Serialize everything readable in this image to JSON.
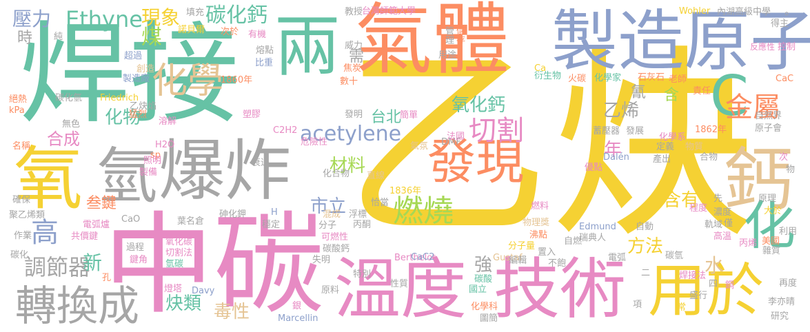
{
  "palette": {
    "yellow": "#f5d133",
    "pink": "#e78ac3",
    "green": "#66c2a5",
    "orange": "#fc8d62",
    "blue": "#8da0cb",
    "gray": "#a6a6a6",
    "lime": "#a6d854",
    "tan": "#e5c494"
  },
  "words": [
    {
      "text": "乙炔",
      "color": "yellow"
    },
    {
      "text": "焊接",
      "color": "green"
    },
    {
      "text": "中碳",
      "color": "pink"
    },
    {
      "text": "氣體",
      "color": "orange"
    },
    {
      "text": "製造原子",
      "color": "blue"
    },
    {
      "text": "溫度",
      "color": "pink"
    },
    {
      "text": "技術",
      "color": "pink"
    },
    {
      "text": "爆炸",
      "color": "gray"
    },
    {
      "text": "氧",
      "color": "yellow"
    },
    {
      "text": "氫",
      "color": "gray"
    },
    {
      "text": "兩",
      "color": "green"
    },
    {
      "text": "鈣",
      "color": "tan"
    },
    {
      "text": "用於",
      "color": "yellow"
    },
    {
      "text": "化",
      "color": "green"
    },
    {
      "text": "C",
      "color": "green"
    },
    {
      "text": "發現",
      "color": "orange"
    },
    {
      "text": "轉換成",
      "color": "gray"
    },
    {
      "text": "化學",
      "color": "tan"
    },
    {
      "text": "金屬",
      "color": "orange"
    },
    {
      "text": "燃燒",
      "color": "lime"
    },
    {
      "text": "切割",
      "color": "pink"
    },
    {
      "text": "Ethyne",
      "color": "green"
    },
    {
      "text": "acetylene",
      "color": "blue"
    },
    {
      "text": "高",
      "color": "blue"
    },
    {
      "text": "碳化鈣",
      "color": "green"
    },
    {
      "text": "壓力",
      "color": "blue"
    },
    {
      "text": "現象",
      "color": "yellow"
    },
    {
      "text": "氧化鈣",
      "color": "green"
    },
    {
      "text": "乙烯",
      "color": "gray"
    },
    {
      "text": "調節器",
      "color": "gray"
    },
    {
      "text": "化物",
      "color": "green"
    },
    {
      "text": "方法",
      "color": "yellow"
    },
    {
      "text": "含有",
      "color": "yellow"
    },
    {
      "text": "炔類",
      "color": "green"
    },
    {
      "text": "毒性",
      "color": "tan"
    },
    {
      "text": "材料",
      "color": "lime"
    },
    {
      "text": "市立",
      "color": "blue"
    },
    {
      "text": "強",
      "color": "gray"
    },
    {
      "text": "新",
      "color": "green"
    },
    {
      "text": "水",
      "color": "tan"
    },
    {
      "text": "年",
      "color": "pink"
    },
    {
      "text": "合成",
      "color": "pink"
    },
    {
      "text": "叁鍵",
      "color": "orange"
    },
    {
      "text": "煤",
      "color": "lime"
    },
    {
      "text": "時",
      "color": "gray"
    },
    {
      "text": "氰",
      "color": "gray"
    },
    {
      "text": "含",
      "color": "lime"
    },
    {
      "text": "需",
      "color": "gray"
    },
    {
      "text": "台北",
      "color": "green"
    },
    {
      "text": "台灣師範大學",
      "color": "pink"
    },
    {
      "text": "內湖高級中學",
      "color": "gray"
    },
    {
      "text": "Wohler",
      "color": "yellow"
    },
    {
      "text": "Friedrich",
      "color": "yellow"
    },
    {
      "text": "Berthelot",
      "color": "pink"
    },
    {
      "text": "Gustaf",
      "color": "tan"
    },
    {
      "text": "Marcellin",
      "color": "blue"
    },
    {
      "text": "Edmund",
      "color": "blue"
    },
    {
      "text": "Dalén",
      "color": "blue"
    },
    {
      "text": "Davy",
      "color": "blue"
    },
    {
      "text": "CaC2",
      "color": "blue"
    },
    {
      "text": "CaC",
      "color": "orange"
    },
    {
      "text": "C2H2",
      "color": "pink"
    },
    {
      "text": "H2O",
      "color": "pink"
    },
    {
      "text": "CaO",
      "color": "gray"
    },
    {
      "text": "DMF",
      "color": "gray"
    },
    {
      "text": "kPa",
      "color": "orange"
    },
    {
      "text": "sp",
      "color": "orange"
    },
    {
      "text": "H",
      "color": "blue"
    },
    {
      "text": "Ca",
      "color": "yellow"
    },
    {
      "text": "1860年",
      "color": "orange"
    },
    {
      "text": "1836年",
      "color": "yellow"
    },
    {
      "text": "1862年",
      "color": "orange"
    },
    {
      "text": "諾貝爾",
      "color": "yellow"
    },
    {
      "text": "次於",
      "color": "orange"
    },
    {
      "text": "有機",
      "color": "pink"
    },
    {
      "text": "教授",
      "color": "gray"
    },
    {
      "text": "管理",
      "color": "gray"
    },
    {
      "text": "儲存",
      "color": "orange"
    },
    {
      "text": "用途",
      "color": "gray"
    },
    {
      "text": "得主",
      "color": "gray"
    },
    {
      "text": "控制",
      "color": "pink"
    },
    {
      "text": "反應性",
      "color": "pink"
    },
    {
      "text": "熔點",
      "color": "gray"
    },
    {
      "text": "比重",
      "color": "blue"
    },
    {
      "text": "超過",
      "color": "blue"
    },
    {
      "text": "創造",
      "color": "tan"
    },
    {
      "text": "製造廠",
      "color": "blue"
    },
    {
      "text": "焦炭",
      "color": "orange"
    },
    {
      "text": "數十",
      "color": "orange"
    },
    {
      "text": "衍生物",
      "color": "green"
    },
    {
      "text": "火碳",
      "color": "orange"
    },
    {
      "text": "化學家",
      "color": "green"
    },
    {
      "text": "石灰石",
      "color": "orange"
    },
    {
      "text": "老師",
      "color": "orange"
    },
    {
      "text": "責任",
      "color": "orange"
    },
    {
      "text": "自然界",
      "color": "gray"
    },
    {
      "text": "原子會",
      "color": "gray"
    },
    {
      "text": "化學系",
      "color": "pink"
    },
    {
      "text": "蓄壓器",
      "color": "gray"
    },
    {
      "text": "發展",
      "color": "gray"
    },
    {
      "text": "定義",
      "color": "gray"
    },
    {
      "text": "物質",
      "color": "tan"
    },
    {
      "text": "產出",
      "color": "gray"
    },
    {
      "text": "合物",
      "color": "gray"
    },
    {
      "text": "優點",
      "color": "pink"
    },
    {
      "text": "發明",
      "color": "gray"
    },
    {
      "text": "簡單",
      "color": "pink"
    },
    {
      "text": "法國",
      "color": "pink"
    },
    {
      "text": "危險性",
      "color": "pink"
    },
    {
      "text": "氣氛",
      "color": "tan"
    },
    {
      "text": "化合物",
      "color": "gray"
    },
    {
      "text": "直線",
      "color": "tan"
    },
    {
      "text": "恰當",
      "color": "gray"
    },
    {
      "text": "浮標",
      "color": "gray"
    },
    {
      "text": "丙酮",
      "color": "gray"
    },
    {
      "text": "碳酸鈣",
      "color": "gray"
    },
    {
      "text": "混成",
      "color": "tan"
    },
    {
      "text": "分子",
      "color": "gray"
    },
    {
      "text": "可燃性",
      "color": "pink"
    },
    {
      "text": "失明",
      "color": "gray"
    },
    {
      "text": "特別",
      "color": "gray"
    },
    {
      "text": "性質",
      "color": "gray"
    },
    {
      "text": "原料",
      "color": "gray"
    },
    {
      "text": "國立",
      "color": "green"
    },
    {
      "text": "化學科",
      "color": "orange"
    },
    {
      "text": "圖簡",
      "color": "gray"
    },
    {
      "text": "碳酸",
      "color": "green"
    },
    {
      "text": "燃料",
      "color": "pink"
    },
    {
      "text": "物理獎",
      "color": "tan"
    },
    {
      "text": "瑞典人",
      "color": "gray"
    },
    {
      "text": "沸點",
      "color": "orange"
    },
    {
      "text": "分子量",
      "color": "yellow"
    },
    {
      "text": "編輯",
      "color": "gray"
    },
    {
      "text": "不飽",
      "color": "gray"
    },
    {
      "text": "自動",
      "color": "gray"
    },
    {
      "text": "置入",
      "color": "gray"
    },
    {
      "text": "自燃",
      "color": "gray"
    },
    {
      "text": "電弧",
      "color": "gray"
    },
    {
      "text": "高溫",
      "color": "pink"
    },
    {
      "text": "軌域",
      "color": "gray"
    },
    {
      "text": "濃度",
      "color": "gray"
    },
    {
      "text": "程度",
      "color": "pink"
    },
    {
      "text": "先",
      "color": "gray"
    },
    {
      "text": "原理",
      "color": "gray"
    },
    {
      "text": "大於",
      "color": "yellow"
    },
    {
      "text": "利用",
      "color": "gray"
    },
    {
      "text": "丙烯",
      "color": "pink"
    },
    {
      "text": "雜質",
      "color": "gray"
    },
    {
      "text": "美國",
      "color": "orange"
    },
    {
      "text": "碳氫",
      "color": "gray"
    },
    {
      "text": "焊接法",
      "color": "pink"
    },
    {
      "text": "四",
      "color": "gray"
    },
    {
      "text": "再度",
      "color": "gray"
    },
    {
      "text": "盛行",
      "color": "gray"
    },
    {
      "text": "李亦晴",
      "color": "gray"
    },
    {
      "text": "研究",
      "color": "gray"
    },
    {
      "text": "項",
      "color": "gray"
    },
    {
      "text": "常",
      "color": "yellow"
    },
    {
      "text": "鋼",
      "color": "pink"
    },
    {
      "text": "二",
      "color": "gray"
    },
    {
      "text": "僅",
      "color": "gray"
    },
    {
      "text": "次",
      "color": "pink"
    },
    {
      "text": "物",
      "color": "gray"
    },
    {
      "text": "電弧爐",
      "color": "pink"
    },
    {
      "text": "共價鍵",
      "color": "pink"
    },
    {
      "text": "鍵角",
      "color": "pink"
    },
    {
      "text": "過程",
      "color": "gray"
    },
    {
      "text": "氧化碳",
      "color": "pink"
    },
    {
      "text": "切割法",
      "color": "pink"
    },
    {
      "text": "氫碳",
      "color": "green"
    },
    {
      "text": "燈塔",
      "color": "pink"
    },
    {
      "text": "葉名倉",
      "color": "gray"
    },
    {
      "text": "砷化鉀",
      "color": "gray"
    },
    {
      "text": "照明",
      "color": "pink"
    },
    {
      "text": "製備",
      "color": "pink"
    },
    {
      "text": "穩定",
      "color": "gray"
    },
    {
      "text": "作業",
      "color": "gray"
    },
    {
      "text": "碳化",
      "color": "gray"
    },
    {
      "text": "確保",
      "color": "gray"
    },
    {
      "text": "聚乙烯類",
      "color": "gray"
    },
    {
      "text": "名稱",
      "color": "orange"
    },
    {
      "text": "絕熱",
      "color": "orange"
    },
    {
      "text": "碳化氫",
      "color": "gray"
    },
    {
      "text": "無色",
      "color": "gray"
    },
    {
      "text": "乙炔焰",
      "color": "gray"
    },
    {
      "text": "猛烈",
      "color": "orange"
    },
    {
      "text": "溶解",
      "color": "pink"
    },
    {
      "text": "塑膠",
      "color": "pink"
    },
    {
      "text": "衰退",
      "color": "gray"
    },
    {
      "text": "填充",
      "color": "gray"
    },
    {
      "text": "威力",
      "color": "gray"
    },
    {
      "text": "純",
      "color": "gray"
    },
    {
      "text": "孔",
      "color": "orange"
    },
    {
      "text": "銀",
      "color": "pink"
    },
    {
      "text": "。",
      "color": "gray"
    }
  ]
}
